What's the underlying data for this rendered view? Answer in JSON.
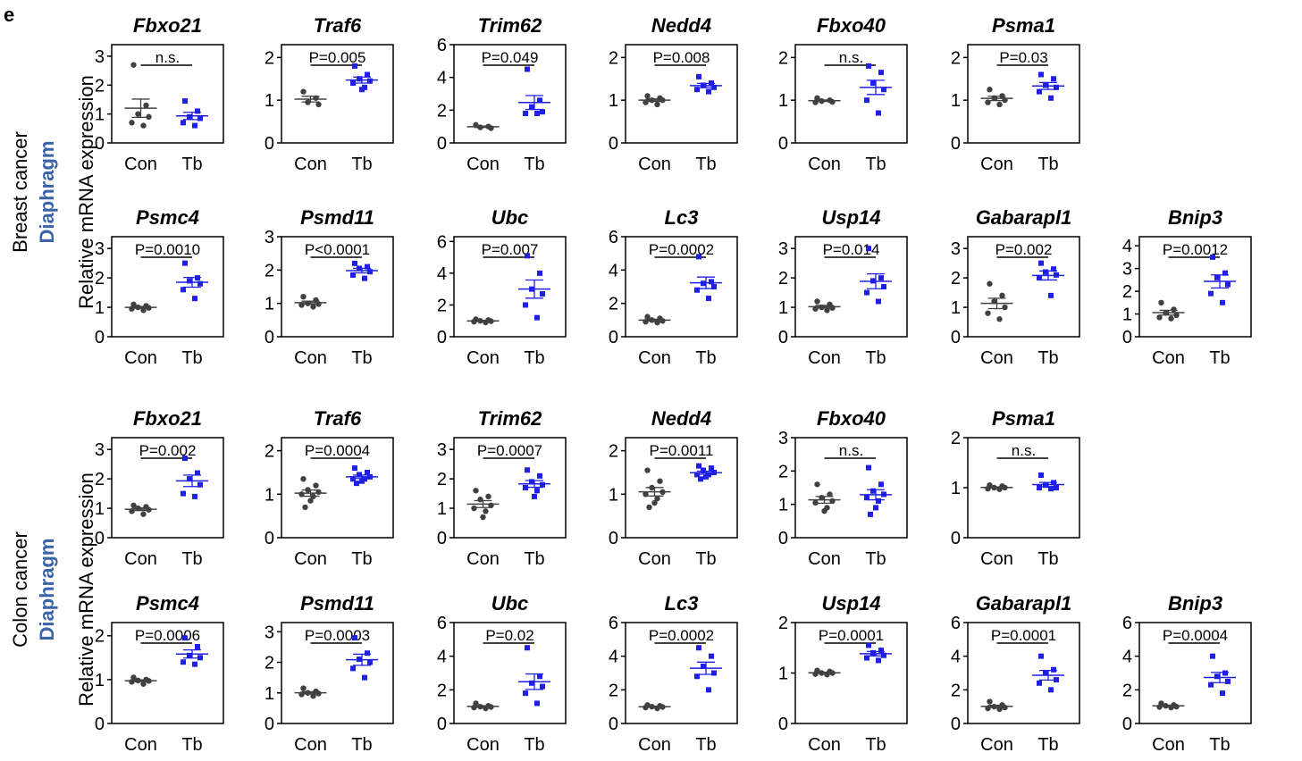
{
  "panel_letter": "e",
  "ylabel": "Relative mRNA expression",
  "x_labels": [
    "Con",
    "Tb"
  ],
  "colors": {
    "con": "#404040",
    "tb": "#1f1fe6",
    "axis": "#000000"
  },
  "groups": [
    {
      "label": "Breast cancer",
      "tissue": "Diaphragm"
    },
    {
      "label": "Colon cancer",
      "tissue": "Diaphragm"
    }
  ],
  "chart_data": [
    {
      "type": "scatter",
      "group": 0,
      "gene": "Fbxo21",
      "ylim": [
        0,
        3.4
      ],
      "yticks": [
        0,
        1,
        2,
        3
      ],
      "sig": "n.s.",
      "con": [
        2.7,
        1.3,
        1.0,
        0.9,
        0.7,
        0.6
      ],
      "tb": [
        1.45,
        1.1,
        0.9,
        0.85,
        0.7,
        0.6
      ]
    },
    {
      "type": "scatter",
      "group": 0,
      "gene": "Traf6",
      "ylim": [
        0,
        2.3
      ],
      "yticks": [
        0,
        1,
        2
      ],
      "sig": "P=0.005",
      "con": [
        1.2,
        1.05,
        0.95,
        0.9
      ],
      "tb": [
        1.8,
        1.6,
        1.5,
        1.45,
        1.4,
        1.3,
        1.25
      ]
    },
    {
      "type": "scatter",
      "group": 0,
      "gene": "Trim62",
      "ylim": [
        0,
        6
      ],
      "yticks": [
        0,
        2,
        4,
        6
      ],
      "sig": "P=0.049",
      "con": [
        1.1,
        1.0,
        0.95,
        0.9
      ],
      "tb": [
        4.5,
        2.6,
        2.2,
        1.9,
        1.8,
        1.8
      ]
    },
    {
      "type": "scatter",
      "group": 0,
      "gene": "Nedd4",
      "ylim": [
        0,
        2.3
      ],
      "yticks": [
        0,
        1,
        2
      ],
      "sig": "P=0.008",
      "con": [
        1.1,
        1.05,
        1.0,
        1.0,
        0.95,
        0.9
      ],
      "tb": [
        1.55,
        1.4,
        1.35,
        1.3,
        1.25,
        1.2
      ]
    },
    {
      "type": "scatter",
      "group": 0,
      "gene": "Fbxo40",
      "ylim": [
        0,
        2.3
      ],
      "yticks": [
        0,
        1,
        2
      ],
      "sig": "n.s.",
      "con": [
        1.05,
        1.0,
        0.98,
        0.96,
        0.95
      ],
      "tb": [
        1.8,
        1.65,
        1.4,
        1.25,
        1.0,
        0.7
      ]
    },
    {
      "type": "scatter",
      "group": 0,
      "gene": "Psma1",
      "ylim": [
        0,
        2.3
      ],
      "yticks": [
        0,
        1,
        2
      ],
      "sig": "P=0.03",
      "con": [
        1.25,
        1.1,
        1.05,
        1.0,
        0.95,
        0.9
      ],
      "tb": [
        1.6,
        1.5,
        1.35,
        1.3,
        1.2,
        1.05
      ]
    },
    {
      "type": "scatter",
      "group": 0,
      "gene": "Psmc4",
      "ylim": [
        0,
        3.4
      ],
      "yticks": [
        0,
        1,
        2,
        3
      ],
      "sig": "P=0.0010",
      "con": [
        1.1,
        1.05,
        1.0,
        0.98,
        0.95,
        0.9
      ],
      "tb": [
        2.5,
        2.0,
        1.9,
        1.8,
        1.6,
        1.3
      ]
    },
    {
      "type": "scatter",
      "group": 0,
      "gene": "Psmd11",
      "ylim": [
        0,
        3.0
      ],
      "yticks": [
        0,
        1,
        2,
        3
      ],
      "sig": "P<0.0001",
      "con": [
        1.2,
        1.1,
        1.0,
        0.98,
        0.95,
        0.9
      ],
      "tb": [
        2.2,
        2.1,
        2.05,
        1.95,
        1.85,
        1.75
      ]
    },
    {
      "type": "scatter",
      "group": 0,
      "gene": "Ubc",
      "ylim": [
        0,
        6.3
      ],
      "yticks": [
        0,
        2,
        4,
        6
      ],
      "sig": "P=0.007",
      "con": [
        1.1,
        1.05,
        1.0,
        0.98,
        0.95,
        0.9
      ],
      "tb": [
        5.1,
        4.0,
        3.0,
        2.7,
        2.0,
        1.2
      ]
    },
    {
      "type": "scatter",
      "group": 0,
      "gene": "Lc3",
      "ylim": [
        0,
        6
      ],
      "yticks": [
        0,
        2,
        4,
        6
      ],
      "sig": "P=0.0002",
      "con": [
        1.2,
        1.1,
        1.0,
        0.95,
        0.9,
        0.85
      ],
      "tb": [
        4.8,
        3.3,
        3.2,
        3.0,
        2.8,
        2.3
      ]
    },
    {
      "type": "scatter",
      "group": 0,
      "gene": "Usp14",
      "ylim": [
        0,
        3.4
      ],
      "yticks": [
        0,
        1,
        2,
        3
      ],
      "sig": "P=0.014",
      "con": [
        1.2,
        1.1,
        1.0,
        0.98,
        0.95,
        0.9
      ],
      "tb": [
        3.0,
        2.0,
        1.9,
        1.7,
        1.5,
        1.2
      ]
    },
    {
      "type": "scatter",
      "group": 0,
      "gene": "Gabarapl1",
      "ylim": [
        0,
        3.4
      ],
      "yticks": [
        0,
        1,
        2,
        3
      ],
      "sig": "P=0.002",
      "con": [
        1.8,
        1.4,
        1.2,
        1.0,
        0.8,
        0.6
      ],
      "tb": [
        2.5,
        2.3,
        2.2,
        2.1,
        2.0,
        1.4
      ]
    },
    {
      "type": "scatter",
      "group": 0,
      "gene": "Bnip3",
      "ylim": [
        0,
        4.4
      ],
      "yticks": [
        0,
        1,
        2,
        3,
        4
      ],
      "sig": "P=0.0012",
      "con": [
        1.5,
        1.2,
        1.05,
        0.95,
        0.85,
        0.8
      ],
      "tb": [
        3.5,
        2.8,
        2.6,
        2.3,
        1.9,
        1.5
      ]
    },
    {
      "type": "scatter",
      "group": 1,
      "gene": "Fbxo21",
      "ylim": [
        0,
        3.4
      ],
      "yticks": [
        0,
        1,
        2,
        3
      ],
      "sig": "P=0.002",
      "con": [
        1.1,
        1.05,
        1.0,
        0.95,
        0.9,
        0.8
      ],
      "tb": [
        2.7,
        2.2,
        2.0,
        1.8,
        1.5,
        1.4
      ]
    },
    {
      "type": "scatter",
      "group": 1,
      "gene": "Traf6",
      "ylim": [
        0,
        2.3
      ],
      "yticks": [
        0,
        1,
        2
      ],
      "sig": "P=0.0004",
      "con": [
        1.35,
        1.2,
        1.1,
        1.05,
        1.0,
        0.95,
        0.85,
        0.7
      ],
      "tb": [
        1.6,
        1.5,
        1.45,
        1.4,
        1.35,
        1.35,
        1.3,
        1.25
      ]
    },
    {
      "type": "scatter",
      "group": 1,
      "gene": "Trim62",
      "ylim": [
        0,
        3.4
      ],
      "yticks": [
        0,
        1,
        2,
        3
      ],
      "sig": "P=0.0007",
      "con": [
        1.6,
        1.4,
        1.3,
        1.1,
        1.0,
        0.9,
        0.7
      ],
      "tb": [
        2.3,
        2.1,
        1.9,
        1.8,
        1.7,
        1.6,
        1.4
      ]
    },
    {
      "type": "scatter",
      "group": 1,
      "gene": "Nedd4",
      "ylim": [
        0,
        2.3
      ],
      "yticks": [
        0,
        1,
        2
      ],
      "sig": "P=0.0011",
      "con": [
        1.55,
        1.3,
        1.15,
        1.05,
        1.0,
        0.9,
        0.8,
        0.7
      ],
      "tb": [
        1.65,
        1.6,
        1.55,
        1.5,
        1.45,
        1.45,
        1.4,
        1.35
      ]
    },
    {
      "type": "scatter",
      "group": 1,
      "gene": "Fbxo40",
      "ylim": [
        0,
        3.0
      ],
      "yticks": [
        0,
        1,
        2,
        3
      ],
      "sig": "n.s.",
      "con": [
        1.6,
        1.3,
        1.2,
        1.1,
        1.05,
        0.9,
        0.8
      ],
      "tb": [
        2.1,
        1.6,
        1.4,
        1.3,
        1.2,
        1.1,
        0.9,
        0.7
      ]
    },
    {
      "type": "scatter",
      "group": 1,
      "gene": "Psma1",
      "ylim": [
        0,
        2.0
      ],
      "yticks": [
        0,
        1,
        2
      ],
      "sig": "n.s.",
      "con": [
        1.05,
        1.03,
        1.0,
        1.0,
        0.98,
        0.97
      ],
      "tb": [
        1.25,
        1.1,
        1.05,
        1.0,
        1.0,
        0.98
      ]
    },
    {
      "type": "scatter",
      "group": 1,
      "gene": "Psmc4",
      "ylim": [
        0,
        2.3
      ],
      "yticks": [
        0,
        1,
        2
      ],
      "sig": "P=0.0006",
      "con": [
        1.05,
        1.0,
        0.98,
        0.97,
        0.95,
        0.9
      ],
      "tb": [
        1.95,
        1.75,
        1.55,
        1.5,
        1.4,
        1.35
      ]
    },
    {
      "type": "scatter",
      "group": 1,
      "gene": "Psmd11",
      "ylim": [
        0,
        3.3
      ],
      "yticks": [
        0,
        1,
        2,
        3
      ],
      "sig": "P=0.0003",
      "con": [
        1.15,
        1.05,
        1.0,
        0.98,
        0.95,
        0.9
      ],
      "tb": [
        2.8,
        2.3,
        2.1,
        2.0,
        1.8,
        1.5
      ]
    },
    {
      "type": "scatter",
      "group": 1,
      "gene": "Ubc",
      "ylim": [
        0,
        6.0
      ],
      "yticks": [
        0,
        2,
        4,
        6
      ],
      "sig": "P=0.02",
      "con": [
        1.2,
        1.05,
        1.0,
        0.98,
        0.95,
        0.9
      ],
      "tb": [
        4.5,
        2.8,
        2.4,
        2.2,
        1.8,
        1.2
      ]
    },
    {
      "type": "scatter",
      "group": 1,
      "gene": "Lc3",
      "ylim": [
        0,
        6.0
      ],
      "yticks": [
        0,
        2,
        4,
        6
      ],
      "sig": "P=0.0002",
      "con": [
        1.1,
        1.05,
        1.0,
        0.98,
        0.95,
        0.9
      ],
      "tb": [
        4.5,
        4.0,
        3.4,
        3.0,
        2.8,
        2.0
      ]
    },
    {
      "type": "scatter",
      "group": 1,
      "gene": "Usp14",
      "ylim": [
        0,
        2.0
      ],
      "yticks": [
        0,
        1,
        2
      ],
      "sig": "P=0.0001",
      "con": [
        1.05,
        1.03,
        1.0,
        1.0,
        0.98,
        0.97
      ],
      "tb": [
        1.55,
        1.45,
        1.4,
        1.35,
        1.3,
        1.25
      ]
    },
    {
      "type": "scatter",
      "group": 1,
      "gene": "Gabarapl1",
      "ylim": [
        0,
        6.0
      ],
      "yticks": [
        0,
        2,
        4,
        6
      ],
      "sig": "P=0.0001",
      "con": [
        1.3,
        1.1,
        1.0,
        0.95,
        0.9,
        0.85
      ],
      "tb": [
        4.0,
        3.2,
        3.0,
        2.6,
        2.4,
        2.0
      ]
    },
    {
      "type": "scatter",
      "group": 1,
      "gene": "Bnip3",
      "ylim": [
        0,
        6.0
      ],
      "yticks": [
        0,
        2,
        4,
        6
      ],
      "sig": "P=0.0004",
      "con": [
        1.2,
        1.1,
        1.05,
        1.0,
        0.98,
        0.95
      ],
      "tb": [
        4.0,
        3.0,
        2.8,
        2.5,
        2.3,
        1.8
      ]
    }
  ]
}
